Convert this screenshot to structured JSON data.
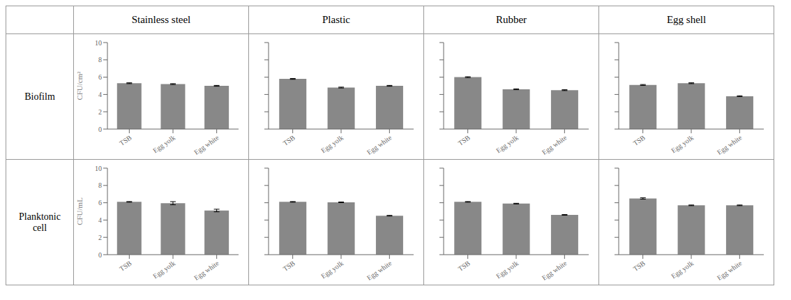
{
  "chart_data": [
    {
      "type": "bar",
      "title": "Stainless steel",
      "annotations": [
        "Biofilm"
      ],
      "y_label": "CFU/cm²",
      "categories": [
        "TSB",
        "Egg yolk",
        "Egg white"
      ],
      "values": [
        5.3,
        5.2,
        5.0
      ],
      "errors": [
        0.05,
        0.05,
        0.05
      ],
      "color": "#888888",
      "ylim": [
        0,
        10
      ],
      "yticks": [
        0,
        2,
        4,
        6,
        8,
        10
      ],
      "grid": false
    },
    {
      "type": "bar",
      "title": "Plastic",
      "categories": [
        "TSB",
        "Egg yolk",
        "Egg white"
      ],
      "values": [
        5.8,
        4.8,
        5.0
      ],
      "errors": [
        0.05,
        0.05,
        0.05
      ],
      "color": "#888888",
      "ylim": [
        0,
        10
      ],
      "yticks": [
        0,
        2,
        4,
        6,
        8,
        10
      ],
      "grid": false,
      "tick_labels": "x"
    },
    {
      "type": "bar",
      "title": "Rubber",
      "categories": [
        "TSB",
        "Egg yolk",
        "Egg white"
      ],
      "values": [
        6.0,
        4.6,
        4.5
      ],
      "errors": [
        0.05,
        0.05,
        0.05
      ],
      "color": "#888888",
      "ylim": [
        0,
        10
      ],
      "yticks": [
        0,
        2,
        4,
        6,
        8,
        10
      ],
      "grid": false,
      "tick_labels": "x"
    },
    {
      "type": "bar",
      "title": "Egg shell",
      "categories": [
        "TSB",
        "Egg yolk",
        "Egg white"
      ],
      "values": [
        5.1,
        5.3,
        3.8
      ],
      "errors": [
        0.05,
        0.05,
        0.05
      ],
      "color": "#888888",
      "ylim": [
        0,
        10
      ],
      "yticks": [
        0,
        2,
        4,
        6,
        8,
        10
      ],
      "grid": false,
      "tick_labels": "x"
    },
    {
      "type": "bar",
      "annotations": [
        "Planktonic\ncell"
      ],
      "y_label": "CFU/mL",
      "categories": [
        "TSB",
        "Egg yolk",
        "Egg white"
      ],
      "values": [
        6.1,
        5.95,
        5.1
      ],
      "errors": [
        0.04,
        0.18,
        0.15
      ],
      "color": "#888888",
      "ylim": [
        0,
        10
      ],
      "yticks": [
        0,
        2,
        4,
        6,
        8,
        10
      ],
      "grid": false
    },
    {
      "type": "bar",
      "categories": [
        "TSB",
        "Egg yolk",
        "Egg white"
      ],
      "values": [
        6.1,
        6.05,
        4.5
      ],
      "errors": [
        0.04,
        0.04,
        0.04
      ],
      "color": "#888888",
      "ylim": [
        0,
        10
      ],
      "yticks": [
        0,
        2,
        4,
        6,
        8,
        10
      ],
      "grid": false,
      "tick_labels": "x"
    },
    {
      "type": "bar",
      "categories": [
        "TSB",
        "Egg yolk",
        "Egg white"
      ],
      "values": [
        6.1,
        5.9,
        4.6
      ],
      "errors": [
        0.04,
        0.04,
        0.04
      ],
      "color": "#888888",
      "ylim": [
        0,
        10
      ],
      "yticks": [
        0,
        2,
        4,
        6,
        8,
        10
      ],
      "grid": false,
      "tick_labels": "x"
    },
    {
      "type": "bar",
      "categories": [
        "TSB",
        "Egg yolk",
        "Egg white"
      ],
      "values": [
        6.5,
        5.7,
        5.7
      ],
      "errors": [
        0.08,
        0.04,
        0.04
      ],
      "color": "#888888",
      "ylim": [
        0,
        10
      ],
      "yticks": [
        0,
        2,
        4,
        6,
        8,
        10
      ],
      "grid": false,
      "tick_labels": "x"
    }
  ]
}
